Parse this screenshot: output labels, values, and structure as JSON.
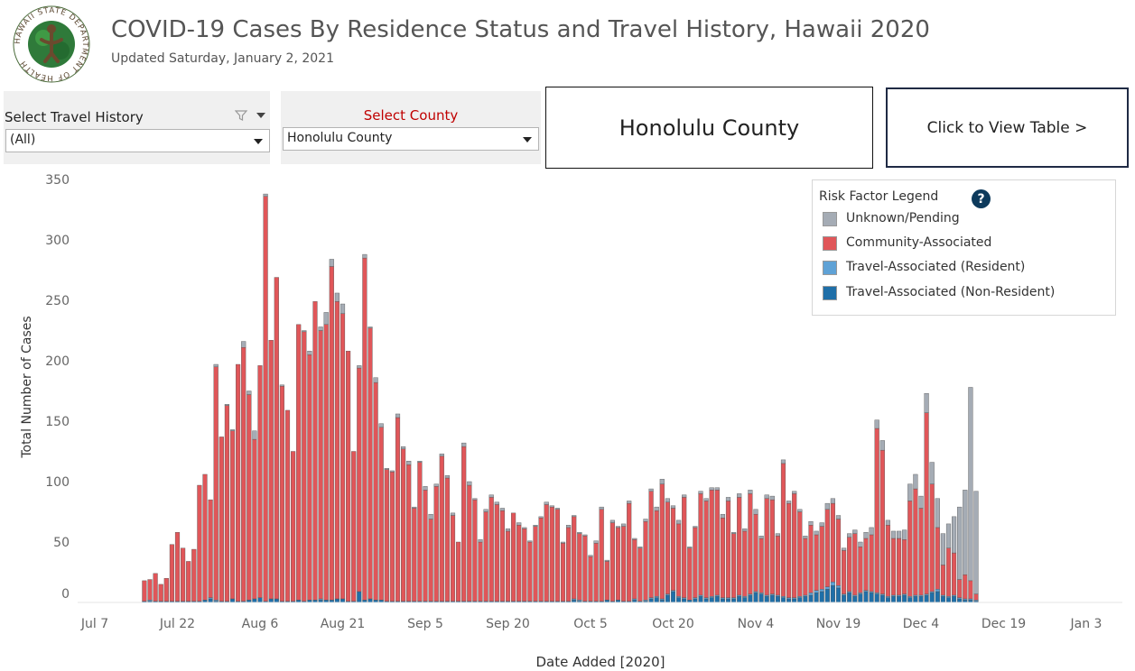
{
  "header": {
    "title": "COVID-19 Cases By Residence Status and Travel History, Hawaii 2020",
    "updated": "Updated Saturday, January 2, 2021",
    "logo_text": "HAWAII STATE DEPARTMENT OF HEALTH"
  },
  "filters": {
    "travel": {
      "label": "Select Travel History",
      "value": "(All)"
    },
    "county": {
      "label": "Select County",
      "value": "Honolulu County",
      "label_color": "#c00000"
    }
  },
  "county_display": "Honolulu County",
  "view_table_button": "Click to View Table >",
  "legend": {
    "title": "Risk Factor Legend",
    "help": "?",
    "items": [
      {
        "label": "Unknown/Pending",
        "color": "#a5acb5"
      },
      {
        "label": "Community-Associated",
        "color": "#e05659"
      },
      {
        "label": "Travel-Associated (Resident)",
        "color": "#5fa2d6"
      },
      {
        "label": "Travel-Associated (Non-Resident)",
        "color": "#1f6fa8"
      }
    ]
  },
  "chart_data": {
    "type": "bar",
    "stacked": true,
    "x_start": "2020-07-16",
    "xlabel": "Date Added [2020]",
    "ylabel": "Total Number of Cases",
    "ylim": [
      0,
      350
    ],
    "yticks": [
      0,
      50,
      100,
      150,
      200,
      250,
      300,
      350
    ],
    "x_ticks": [
      "Jul 7",
      "Jul 22",
      "Aug 6",
      "Aug 21",
      "Sep 5",
      "Sep 20",
      "Oct 5",
      "Oct 20",
      "Nov 4",
      "Nov 19",
      "Dec 4",
      "Dec 19",
      "Jan 3"
    ],
    "grid": false,
    "legend_position": "top-right",
    "series": [
      {
        "name": "Travel-Associated (Non-Resident)",
        "color": "#1f6fa8",
        "values": [
          1,
          1,
          1,
          1,
          1,
          1,
          1,
          1,
          1,
          1,
          1,
          2,
          3,
          1,
          1,
          1,
          3,
          1,
          1,
          2,
          3,
          4,
          1,
          3,
          3,
          1,
          1,
          1,
          2,
          1,
          2,
          2,
          2,
          2,
          2,
          3,
          3,
          1,
          1,
          9,
          2,
          3,
          2,
          2,
          1,
          1,
          1,
          1,
          1,
          1,
          1,
          1,
          1,
          1,
          1,
          1,
          1,
          1,
          1,
          1,
          1,
          1,
          1,
          1,
          1,
          1,
          1,
          1,
          1,
          1,
          1,
          1,
          1,
          1,
          1,
          1,
          1,
          1,
          2,
          1,
          1,
          1,
          1,
          1,
          2,
          1,
          2,
          1,
          1,
          2,
          1,
          1,
          3,
          4,
          2,
          6,
          9,
          4,
          3,
          2,
          3,
          5,
          3,
          4,
          5,
          3,
          3,
          3,
          5,
          4,
          6,
          8,
          7,
          5,
          6,
          5,
          4,
          3,
          3,
          4,
          5,
          6,
          8,
          9,
          11,
          14,
          12,
          6,
          8,
          5,
          7,
          9,
          8,
          7,
          6,
          4,
          5,
          5,
          6,
          4,
          5,
          5,
          6,
          8,
          9,
          5,
          4,
          5,
          3,
          2,
          2,
          1
        ]
      },
      {
        "name": "Travel-Associated (Resident)",
        "color": "#5fa2d6",
        "values": [
          0,
          1,
          0,
          0,
          0,
          0,
          0,
          0,
          0,
          0,
          0,
          0,
          1,
          1,
          0,
          0,
          0,
          0,
          0,
          0,
          0,
          0,
          0,
          0,
          0,
          0,
          0,
          0,
          0,
          0,
          0,
          0,
          1,
          0,
          0,
          0,
          0,
          0,
          0,
          0,
          0,
          0,
          0,
          0,
          0,
          0,
          0,
          0,
          0,
          0,
          0,
          0,
          0,
          0,
          0,
          0,
          0,
          0,
          0,
          0,
          0,
          0,
          0,
          0,
          0,
          0,
          0,
          0,
          0,
          0,
          0,
          0,
          0,
          0,
          0,
          0,
          0,
          0,
          1,
          1,
          0,
          0,
          0,
          0,
          0,
          0,
          0,
          0,
          0,
          1,
          0,
          1,
          1,
          1,
          1,
          1,
          1,
          1,
          1,
          0,
          1,
          1,
          1,
          1,
          1,
          1,
          1,
          1,
          1,
          1,
          1,
          1,
          1,
          1,
          1,
          1,
          1,
          1,
          1,
          1,
          1,
          2,
          2,
          2,
          2,
          3,
          2,
          1,
          1,
          1,
          1,
          1,
          1,
          1,
          1,
          1,
          1,
          1,
          1,
          1,
          1,
          1,
          1,
          1,
          2,
          1,
          1,
          1,
          1,
          1,
          1,
          1
        ]
      },
      {
        "name": "Community-Associated",
        "color": "#e05659",
        "values": [
          17,
          17,
          23,
          14,
          19,
          47,
          57,
          44,
          33,
          43,
          96,
          104,
          81,
          193,
          136,
          162,
          139,
          196,
          210,
          170,
          132,
          192,
          335,
          214,
          266,
          178,
          158,
          124,
          228,
          223,
          203,
          247,
          222,
          228,
          276,
          246,
          236,
          207,
          124,
          185,
          283,
          224,
          180,
          143,
          109,
          107,
          152,
          126,
          113,
          77,
          115,
          92,
          68,
          95,
          120,
          102,
          71,
          49,
          128,
          96,
          84,
          49,
          74,
          86,
          80,
          75,
          58,
          73,
          63,
          60,
          49,
          62,
          69,
          80,
          78,
          76,
          48,
          61,
          68,
          55,
          54,
          37,
          48,
          76,
          32,
          65,
          60,
          62,
          81,
          49,
          44,
          65,
          88,
          71,
          95,
          76,
          68,
          60,
          83,
          43,
          58,
          84,
          80,
          88,
          87,
          66,
          80,
          53,
          81,
          54,
          83,
          64,
          45,
          80,
          78,
          49,
          110,
          78,
          86,
          70,
          47,
          56,
          46,
          52,
          64,
          65,
          55,
          36,
          45,
          51,
          38,
          43,
          47,
          136,
          119,
          59,
          47,
          47,
          45,
          79,
          88,
          72,
          150,
          89,
          51,
          25,
          40,
          35,
          15,
          20,
          15,
          5
        ]
      },
      {
        "name": "Unknown/Pending",
        "color": "#a5acb5",
        "values": [
          0,
          0,
          0,
          0,
          0,
          0,
          0,
          0,
          0,
          0,
          0,
          0,
          0,
          2,
          0,
          1,
          1,
          0,
          5,
          3,
          7,
          0,
          2,
          0,
          0,
          1,
          0,
          0,
          0,
          1,
          3,
          0,
          3,
          10,
          6,
          7,
          8,
          0,
          0,
          2,
          3,
          1,
          4,
          3,
          1,
          1,
          3,
          2,
          3,
          1,
          1,
          3,
          4,
          2,
          2,
          2,
          2,
          0,
          3,
          3,
          1,
          2,
          2,
          2,
          2,
          2,
          2,
          0,
          2,
          1,
          1,
          1,
          1,
          2,
          1,
          1,
          1,
          2,
          1,
          1,
          1,
          1,
          2,
          2,
          1,
          2,
          1,
          2,
          2,
          1,
          1,
          2,
          2,
          3,
          4,
          3,
          2,
          3,
          2,
          1,
          1,
          2,
          2,
          2,
          2,
          3,
          3,
          1,
          3,
          2,
          3,
          4,
          2,
          3,
          3,
          2,
          3,
          2,
          2,
          2,
          2,
          3,
          3,
          3,
          5,
          4,
          3,
          2,
          3,
          3,
          4,
          5,
          6,
          7,
          8,
          4,
          6,
          6,
          8,
          14,
          12,
          10,
          16,
          18,
          24,
          26,
          20,
          30,
          60,
          70,
          160,
          85
        ]
      }
    ]
  }
}
